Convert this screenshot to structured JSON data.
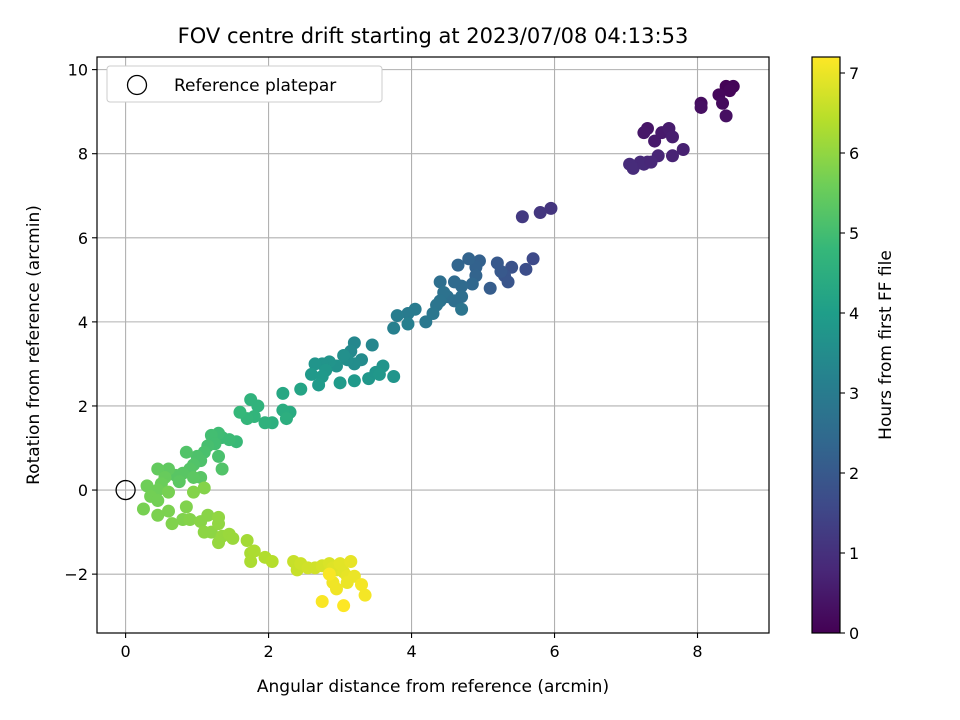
{
  "chart_data": {
    "type": "scatter",
    "title": "FOV centre drift starting at 2023/07/08 04:13:53",
    "xlabel": "Angular distance from reference (arcmin)",
    "ylabel": "Rotation from reference (arcmin)",
    "xlim": [
      -0.4,
      9.0
    ],
    "ylim": [
      -3.4,
      10.3
    ],
    "xticks": [
      0,
      2,
      4,
      6,
      8
    ],
    "yticks": [
      -2,
      0,
      2,
      4,
      6,
      8,
      10
    ],
    "xtick_labels": [
      "0",
      "2",
      "4",
      "6",
      "8"
    ],
    "ytick_labels": [
      "−2",
      "0",
      "2",
      "4",
      "6",
      "8",
      "10"
    ],
    "grid": true,
    "legend": {
      "placement": "top-left",
      "entries": [
        "Reference platepar"
      ]
    },
    "reference_point": {
      "x": 0,
      "y": 0
    },
    "colorbar": {
      "label": "Hours from first FF file",
      "range": [
        0,
        7.2
      ],
      "ticks": [
        0,
        1,
        2,
        3,
        4,
        5,
        6,
        7
      ],
      "tick_labels": [
        "0",
        "1",
        "2",
        "3",
        "4",
        "5",
        "6",
        "7"
      ],
      "colormap": [
        "#440154",
        "#482878",
        "#3e4a89",
        "#31688e",
        "#26828e",
        "#1f9e89",
        "#35b779",
        "#6ece58",
        "#b5de2b",
        "#fde725"
      ]
    },
    "points": [
      {
        "x": 8.4,
        "y": 9.6,
        "t": 0.05
      },
      {
        "x": 8.5,
        "y": 9.6,
        "t": 0.08
      },
      {
        "x": 8.45,
        "y": 9.5,
        "t": 0.1
      },
      {
        "x": 8.3,
        "y": 9.4,
        "t": 0.15
      },
      {
        "x": 8.35,
        "y": 9.2,
        "t": 0.2
      },
      {
        "x": 8.4,
        "y": 8.9,
        "t": 0.3
      },
      {
        "x": 8.05,
        "y": 9.2,
        "t": 0.25
      },
      {
        "x": 8.05,
        "y": 9.1,
        "t": 0.3
      },
      {
        "x": 7.3,
        "y": 8.6,
        "t": 0.4
      },
      {
        "x": 7.25,
        "y": 8.5,
        "t": 0.45
      },
      {
        "x": 7.4,
        "y": 8.3,
        "t": 0.5
      },
      {
        "x": 7.5,
        "y": 8.5,
        "t": 0.5
      },
      {
        "x": 7.6,
        "y": 8.6,
        "t": 0.55
      },
      {
        "x": 7.65,
        "y": 8.4,
        "t": 0.6
      },
      {
        "x": 7.8,
        "y": 8.1,
        "t": 0.65
      },
      {
        "x": 7.65,
        "y": 7.95,
        "t": 0.7
      },
      {
        "x": 7.45,
        "y": 7.95,
        "t": 0.75
      },
      {
        "x": 7.3,
        "y": 7.8,
        "t": 0.8
      },
      {
        "x": 7.2,
        "y": 7.8,
        "t": 0.85
      },
      {
        "x": 7.05,
        "y": 7.75,
        "t": 0.9
      },
      {
        "x": 7.1,
        "y": 7.65,
        "t": 0.9
      },
      {
        "x": 7.25,
        "y": 7.75,
        "t": 0.85
      },
      {
        "x": 7.35,
        "y": 7.8,
        "t": 0.8
      },
      {
        "x": 5.95,
        "y": 6.7,
        "t": 1.1
      },
      {
        "x": 5.8,
        "y": 6.6,
        "t": 1.15
      },
      {
        "x": 5.55,
        "y": 6.5,
        "t": 1.2
      },
      {
        "x": 5.7,
        "y": 5.5,
        "t": 1.6
      },
      {
        "x": 5.6,
        "y": 5.25,
        "t": 1.7
      },
      {
        "x": 5.4,
        "y": 5.3,
        "t": 1.8
      },
      {
        "x": 5.3,
        "y": 5.1,
        "t": 1.9
      },
      {
        "x": 5.35,
        "y": 4.95,
        "t": 1.9
      },
      {
        "x": 5.25,
        "y": 5.2,
        "t": 2.0
      },
      {
        "x": 5.2,
        "y": 5.4,
        "t": 2.0
      },
      {
        "x": 5.1,
        "y": 4.8,
        "t": 2.1
      },
      {
        "x": 4.95,
        "y": 5.45,
        "t": 2.2
      },
      {
        "x": 4.9,
        "y": 5.3,
        "t": 2.25
      },
      {
        "x": 4.8,
        "y": 5.5,
        "t": 2.3
      },
      {
        "x": 4.65,
        "y": 5.35,
        "t": 2.35
      },
      {
        "x": 4.9,
        "y": 5.1,
        "t": 2.3
      },
      {
        "x": 4.85,
        "y": 4.9,
        "t": 2.4
      },
      {
        "x": 4.7,
        "y": 4.85,
        "t": 2.5
      },
      {
        "x": 4.6,
        "y": 4.95,
        "t": 2.5
      },
      {
        "x": 4.7,
        "y": 4.6,
        "t": 2.6
      },
      {
        "x": 4.6,
        "y": 4.5,
        "t": 2.6
      },
      {
        "x": 4.5,
        "y": 4.6,
        "t": 2.65
      },
      {
        "x": 4.4,
        "y": 4.95,
        "t": 2.6
      },
      {
        "x": 4.45,
        "y": 4.7,
        "t": 2.7
      },
      {
        "x": 4.4,
        "y": 4.5,
        "t": 2.75
      },
      {
        "x": 4.35,
        "y": 4.4,
        "t": 2.8
      },
      {
        "x": 4.3,
        "y": 4.2,
        "t": 2.85
      },
      {
        "x": 4.2,
        "y": 4.0,
        "t": 2.9
      },
      {
        "x": 4.7,
        "y": 4.3,
        "t": 2.8
      },
      {
        "x": 4.05,
        "y": 4.3,
        "t": 3.0
      },
      {
        "x": 3.95,
        "y": 4.2,
        "t": 3.0
      },
      {
        "x": 3.8,
        "y": 4.15,
        "t": 3.05
      },
      {
        "x": 3.95,
        "y": 3.95,
        "t": 3.1
      },
      {
        "x": 3.75,
        "y": 3.85,
        "t": 3.15
      },
      {
        "x": 3.45,
        "y": 3.45,
        "t": 3.3
      },
      {
        "x": 3.2,
        "y": 3.5,
        "t": 3.35
      },
      {
        "x": 3.15,
        "y": 3.3,
        "t": 3.4
      },
      {
        "x": 3.3,
        "y": 3.1,
        "t": 3.45
      },
      {
        "x": 3.2,
        "y": 3.0,
        "t": 3.5
      },
      {
        "x": 3.1,
        "y": 3.1,
        "t": 3.55
      },
      {
        "x": 3.05,
        "y": 3.2,
        "t": 3.6
      },
      {
        "x": 2.95,
        "y": 2.95,
        "t": 3.65
      },
      {
        "x": 2.85,
        "y": 3.05,
        "t": 3.7
      },
      {
        "x": 2.75,
        "y": 3.0,
        "t": 3.7
      },
      {
        "x": 2.65,
        "y": 3.0,
        "t": 3.75
      },
      {
        "x": 2.8,
        "y": 2.85,
        "t": 3.8
      },
      {
        "x": 2.75,
        "y": 2.7,
        "t": 3.85
      },
      {
        "x": 2.6,
        "y": 2.75,
        "t": 3.85
      },
      {
        "x": 2.7,
        "y": 2.5,
        "t": 3.9
      },
      {
        "x": 3.0,
        "y": 2.55,
        "t": 3.9
      },
      {
        "x": 3.2,
        "y": 2.6,
        "t": 3.85
      },
      {
        "x": 3.4,
        "y": 2.65,
        "t": 3.8
      },
      {
        "x": 3.5,
        "y": 2.8,
        "t": 3.75
      },
      {
        "x": 3.6,
        "y": 2.95,
        "t": 3.7
      },
      {
        "x": 3.75,
        "y": 2.7,
        "t": 3.75
      },
      {
        "x": 3.55,
        "y": 2.75,
        "t": 3.8
      },
      {
        "x": 2.45,
        "y": 2.4,
        "t": 4.2
      },
      {
        "x": 2.2,
        "y": 2.3,
        "t": 4.3
      },
      {
        "x": 2.3,
        "y": 1.85,
        "t": 4.4
      },
      {
        "x": 2.2,
        "y": 1.9,
        "t": 4.45
      },
      {
        "x": 2.25,
        "y": 1.7,
        "t": 4.5
      },
      {
        "x": 2.05,
        "y": 1.6,
        "t": 4.55
      },
      {
        "x": 1.95,
        "y": 1.6,
        "t": 4.6
      },
      {
        "x": 1.85,
        "y": 2.0,
        "t": 4.65
      },
      {
        "x": 1.75,
        "y": 2.15,
        "t": 4.65
      },
      {
        "x": 1.8,
        "y": 1.75,
        "t": 4.7
      },
      {
        "x": 1.7,
        "y": 1.7,
        "t": 4.75
      },
      {
        "x": 1.6,
        "y": 1.85,
        "t": 4.8
      },
      {
        "x": 1.55,
        "y": 1.15,
        "t": 4.85
      },
      {
        "x": 1.45,
        "y": 1.2,
        "t": 4.9
      },
      {
        "x": 1.35,
        "y": 1.25,
        "t": 4.9
      },
      {
        "x": 1.3,
        "y": 1.35,
        "t": 4.95
      },
      {
        "x": 1.2,
        "y": 1.3,
        "t": 5.0
      },
      {
        "x": 1.25,
        "y": 1.1,
        "t": 5.0
      },
      {
        "x": 1.15,
        "y": 1.05,
        "t": 5.05
      },
      {
        "x": 1.1,
        "y": 0.9,
        "t": 5.1
      },
      {
        "x": 1.0,
        "y": 0.8,
        "t": 5.15
      },
      {
        "x": 1.05,
        "y": 0.7,
        "t": 5.15
      },
      {
        "x": 0.95,
        "y": 0.6,
        "t": 5.2
      },
      {
        "x": 0.85,
        "y": 0.9,
        "t": 5.2
      },
      {
        "x": 0.9,
        "y": 0.5,
        "t": 5.25
      },
      {
        "x": 0.8,
        "y": 0.4,
        "t": 5.3
      },
      {
        "x": 0.7,
        "y": 0.35,
        "t": 5.3
      },
      {
        "x": 0.75,
        "y": 0.2,
        "t": 5.35
      },
      {
        "x": 1.3,
        "y": 0.8,
        "t": 5.1
      },
      {
        "x": 1.35,
        "y": 0.5,
        "t": 5.2
      },
      {
        "x": 1.05,
        "y": 0.3,
        "t": 5.3
      },
      {
        "x": 0.95,
        "y": 0.3,
        "t": 5.35
      },
      {
        "x": 0.6,
        "y": 0.5,
        "t": 5.4
      },
      {
        "x": 0.45,
        "y": 0.5,
        "t": 5.45
      },
      {
        "x": 0.55,
        "y": 0.3,
        "t": 5.5
      },
      {
        "x": 0.5,
        "y": 0.15,
        "t": 5.55
      },
      {
        "x": 0.45,
        "y": 0.0,
        "t": 5.6
      },
      {
        "x": 0.3,
        "y": 0.1,
        "t": 5.6
      },
      {
        "x": 0.35,
        "y": -0.15,
        "t": 5.65
      },
      {
        "x": 0.45,
        "y": -0.25,
        "t": 5.65
      },
      {
        "x": 0.6,
        "y": -0.05,
        "t": 5.7
      },
      {
        "x": 0.25,
        "y": -0.45,
        "t": 5.7
      },
      {
        "x": 0.45,
        "y": -0.6,
        "t": 5.75
      },
      {
        "x": 0.6,
        "y": -0.5,
        "t": 5.75
      },
      {
        "x": 0.65,
        "y": -0.8,
        "t": 5.8
      },
      {
        "x": 0.8,
        "y": -0.7,
        "t": 5.8
      },
      {
        "x": 0.85,
        "y": -0.4,
        "t": 5.8
      },
      {
        "x": 0.9,
        "y": -0.7,
        "t": 5.85
      },
      {
        "x": 0.95,
        "y": -0.05,
        "t": 5.85
      },
      {
        "x": 1.1,
        "y": 0.05,
        "t": 5.85
      },
      {
        "x": 1.05,
        "y": -0.75,
        "t": 5.9
      },
      {
        "x": 1.15,
        "y": -0.6,
        "t": 5.9
      },
      {
        "x": 1.1,
        "y": -1.0,
        "t": 5.95
      },
      {
        "x": 1.2,
        "y": -1.0,
        "t": 5.95
      },
      {
        "x": 1.3,
        "y": -0.8,
        "t": 6.0
      },
      {
        "x": 1.3,
        "y": -0.65,
        "t": 6.0
      },
      {
        "x": 1.35,
        "y": -1.1,
        "t": 6.05
      },
      {
        "x": 1.3,
        "y": -1.25,
        "t": 6.05
      },
      {
        "x": 1.45,
        "y": -1.05,
        "t": 6.1
      },
      {
        "x": 1.5,
        "y": -1.15,
        "t": 6.1
      },
      {
        "x": 1.7,
        "y": -1.2,
        "t": 6.2
      },
      {
        "x": 1.75,
        "y": -1.5,
        "t": 6.25
      },
      {
        "x": 1.8,
        "y": -1.45,
        "t": 6.3
      },
      {
        "x": 1.75,
        "y": -1.7,
        "t": 6.3
      },
      {
        "x": 1.95,
        "y": -1.6,
        "t": 6.35
      },
      {
        "x": 2.05,
        "y": -1.7,
        "t": 6.4
      },
      {
        "x": 2.35,
        "y": -1.7,
        "t": 6.6
      },
      {
        "x": 2.4,
        "y": -1.9,
        "t": 6.6
      },
      {
        "x": 2.45,
        "y": -1.75,
        "t": 6.65
      },
      {
        "x": 2.55,
        "y": -1.85,
        "t": 6.7
      },
      {
        "x": 2.65,
        "y": -1.85,
        "t": 6.7
      },
      {
        "x": 2.75,
        "y": -1.8,
        "t": 6.75
      },
      {
        "x": 2.85,
        "y": -1.75,
        "t": 6.8
      },
      {
        "x": 2.9,
        "y": -1.85,
        "t": 6.85
      },
      {
        "x": 2.95,
        "y": -1.9,
        "t": 6.85
      },
      {
        "x": 3.0,
        "y": -1.75,
        "t": 6.9
      },
      {
        "x": 3.05,
        "y": -1.95,
        "t": 6.9
      },
      {
        "x": 3.1,
        "y": -2.05,
        "t": 6.95
      },
      {
        "x": 3.15,
        "y": -1.7,
        "t": 6.95
      },
      {
        "x": 3.2,
        "y": -2.05,
        "t": 7.0
      },
      {
        "x": 3.1,
        "y": -2.2,
        "t": 7.0
      },
      {
        "x": 2.9,
        "y": -2.2,
        "t": 7.05
      },
      {
        "x": 2.95,
        "y": -2.35,
        "t": 7.05
      },
      {
        "x": 3.3,
        "y": -2.25,
        "t": 7.1
      },
      {
        "x": 3.35,
        "y": -2.5,
        "t": 7.1
      },
      {
        "x": 2.85,
        "y": -2.0,
        "t": 7.15
      },
      {
        "x": 2.75,
        "y": -2.65,
        "t": 7.15
      },
      {
        "x": 3.05,
        "y": -2.75,
        "t": 7.2
      }
    ]
  }
}
